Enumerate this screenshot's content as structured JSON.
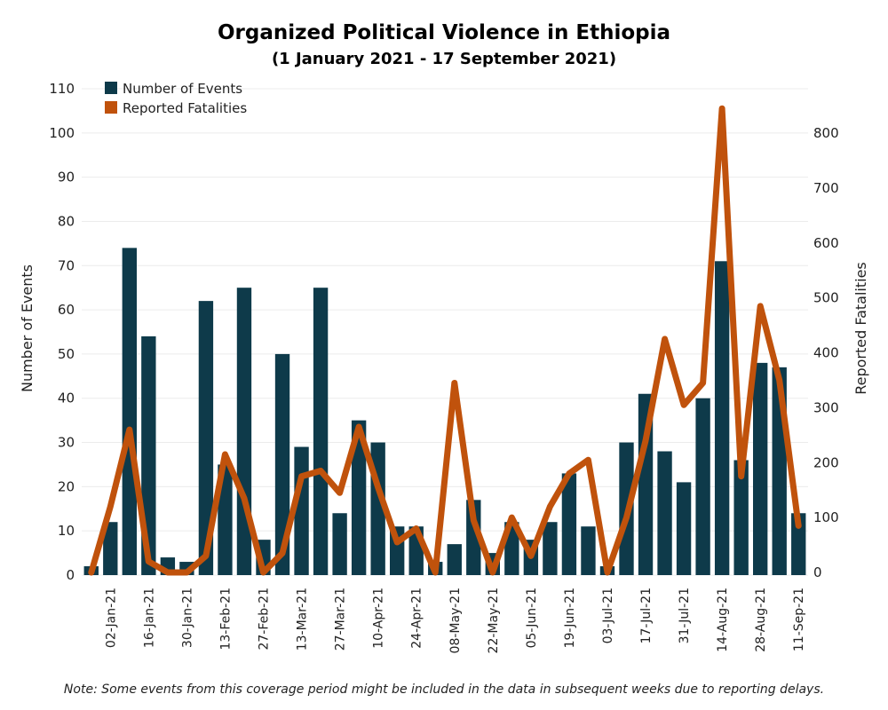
{
  "chart_data": {
    "type": "bar+line",
    "title": "Organized Political Violence in Ethiopia",
    "subtitle": "(1 January 2021 - 17 September 2021)",
    "ylabel_left": "Number of Events",
    "ylabel_right": "Reported Fatalities",
    "ylim_left": [
      0,
      110
    ],
    "ylim_right": [
      0,
      850
    ],
    "yticks_left": [
      0,
      10,
      20,
      30,
      40,
      50,
      60,
      70,
      80,
      90,
      100,
      110
    ],
    "yticks_right": [
      0,
      100,
      200,
      300,
      400,
      500,
      600,
      700,
      800
    ],
    "grid": true,
    "legend_position": "top-left",
    "x_tick_labels": [
      "02-Jan-21",
      "16-Jan-21",
      "30-Jan-21",
      "13-Feb-21",
      "27-Feb-21",
      "13-Mar-21",
      "27-Mar-21",
      "10-Apr-21",
      "24-Apr-21",
      "08-May-21",
      "22-May-21",
      "05-Jun-21",
      "19-Jun-21",
      "03-Jul-21",
      "17-Jul-21",
      "31-Jul-21",
      "14-Aug-21",
      "28-Aug-21",
      "11-Sep-21"
    ],
    "series": [
      {
        "name": "Number of Events",
        "kind": "bar",
        "color": "#0e3a4a",
        "values": [
          2,
          12,
          74,
          54,
          4,
          3,
          62,
          25,
          65,
          8,
          50,
          29,
          65,
          14,
          35,
          30,
          11,
          11,
          3,
          7,
          17,
          5,
          12,
          8,
          12,
          23,
          11,
          2,
          30,
          41,
          28,
          21,
          40,
          71,
          26,
          48,
          47,
          14
        ]
      },
      {
        "name": "Reported Fatalities",
        "kind": "line",
        "color": "#c0520c",
        "values": [
          0,
          120,
          260,
          20,
          0,
          0,
          30,
          215,
          135,
          0,
          35,
          175,
          185,
          145,
          265,
          155,
          55,
          80,
          0,
          345,
          95,
          0,
          100,
          30,
          120,
          180,
          205,
          0,
          100,
          240,
          425,
          305,
          345,
          845,
          175,
          485,
          350,
          85
        ]
      }
    ],
    "note": "Note: Some events from this coverage period might be included in the data in subsequent weeks due to reporting delays."
  }
}
